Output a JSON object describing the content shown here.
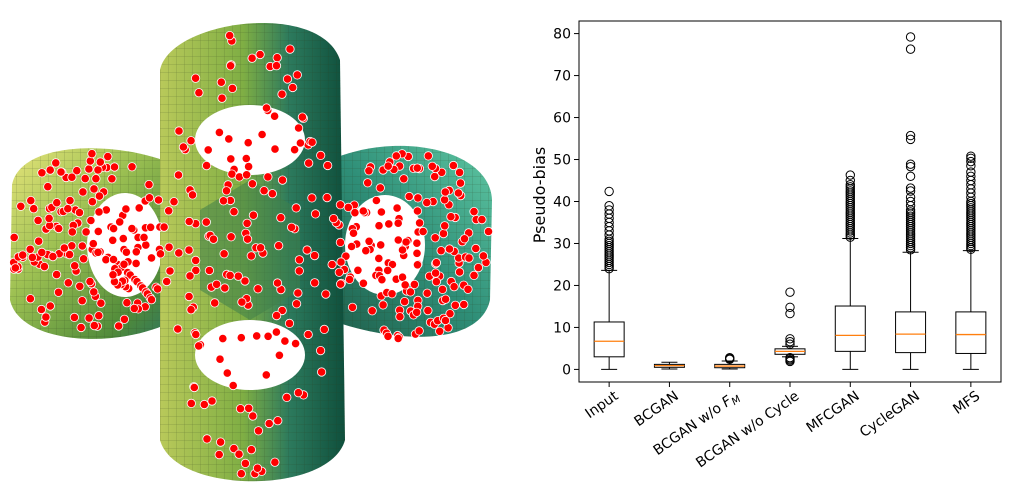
{
  "left_figure": {
    "surface_colors": [
      "#c8d96a",
      "#8cb84a",
      "#4f8a3a",
      "#1f6e5a",
      "#3aa28a",
      "#e8e27a"
    ],
    "marker_color": "#ff0000"
  },
  "chart_data": {
    "type": "box",
    "title": "",
    "xlabel": "",
    "ylabel": "Pseudo-bias",
    "ylim": [
      -3,
      83
    ],
    "yticks": [
      0,
      10,
      20,
      30,
      40,
      50,
      60,
      70,
      80
    ],
    "grid": false,
    "median_color": "#ff7f0e",
    "categories": [
      "Input",
      "BCGAN",
      "BCGAN w/o F_M",
      "BCGAN w/o Cycle",
      "MFCGAN",
      "CycleGAN",
      "MFS"
    ],
    "category_labels": [
      {
        "text": "Input"
      },
      {
        "text": "BCGAN"
      },
      {
        "text": "BCGAN w/o ",
        "math": "F",
        "sub": "M"
      },
      {
        "text": "BCGAN w/o Cycle"
      },
      {
        "text": "MFCGAN"
      },
      {
        "text": "CycleGAN"
      },
      {
        "text": "MFS"
      }
    ],
    "boxes": [
      {
        "whislo": 0,
        "q1": 3,
        "med": 6.7,
        "q3": 11.3,
        "whishi": 23.6,
        "fliers": [
          24,
          24.5,
          25,
          25.5,
          26,
          26.5,
          27,
          27.5,
          28,
          28.5,
          29,
          29.5,
          30,
          30.5,
          31,
          32,
          33,
          34,
          35,
          36,
          37,
          38,
          39,
          42.4
        ]
      },
      {
        "whislo": 0.1,
        "q1": 0.5,
        "med": 0.9,
        "q3": 1.2,
        "whishi": 1.7,
        "fliers": []
      },
      {
        "whislo": 0.1,
        "q1": 0.4,
        "med": 0.8,
        "q3": 1.2,
        "whishi": 2.0,
        "fliers": [
          2.4,
          2.6,
          2.8
        ]
      },
      {
        "whislo": 3.0,
        "q1": 3.6,
        "med": 4.3,
        "q3": 4.9,
        "whishi": 5.5,
        "fliers": [
          1.9,
          2.2,
          2.5,
          2.8,
          6.0,
          6.6,
          7.3,
          13.3,
          14.8,
          18.4
        ]
      },
      {
        "whislo": 0,
        "q1": 4.3,
        "med": 8.1,
        "q3": 15.1,
        "whishi": 31.2,
        "fliers": [
          31.5,
          32,
          32.5,
          33,
          33.5,
          34,
          34.5,
          35,
          35.5,
          36,
          36.5,
          37,
          37.5,
          38,
          38.5,
          39,
          39.5,
          40,
          40.5,
          41,
          41.5,
          42,
          42.5,
          43,
          43.5,
          44,
          45,
          46.3
        ]
      },
      {
        "whislo": 0,
        "q1": 4.0,
        "med": 8.4,
        "q3": 13.7,
        "whishi": 27.9,
        "fliers": [
          28.5,
          29,
          29.5,
          30,
          30.5,
          31,
          31.5,
          32,
          32.5,
          33,
          33.5,
          34,
          34.5,
          35,
          35.5,
          36,
          36.5,
          37,
          37.5,
          38,
          39,
          40,
          41,
          42.5,
          43.2,
          46,
          48.3,
          48.9,
          54.8,
          55.7,
          76.3,
          79.2
        ]
      },
      {
        "whislo": 0,
        "q1": 3.8,
        "med": 8.3,
        "q3": 13.7,
        "whishi": 28.3,
        "fliers": [
          28.6,
          29,
          29.5,
          30,
          30.5,
          31,
          31.5,
          32,
          32.5,
          33,
          33.5,
          34,
          34.5,
          35,
          35.5,
          36,
          36.5,
          37,
          37.5,
          38,
          38.5,
          39,
          39.5,
          40,
          41,
          42,
          43,
          44,
          45,
          46,
          47,
          48.5,
          49.5,
          50.3,
          50.8
        ]
      }
    ]
  }
}
